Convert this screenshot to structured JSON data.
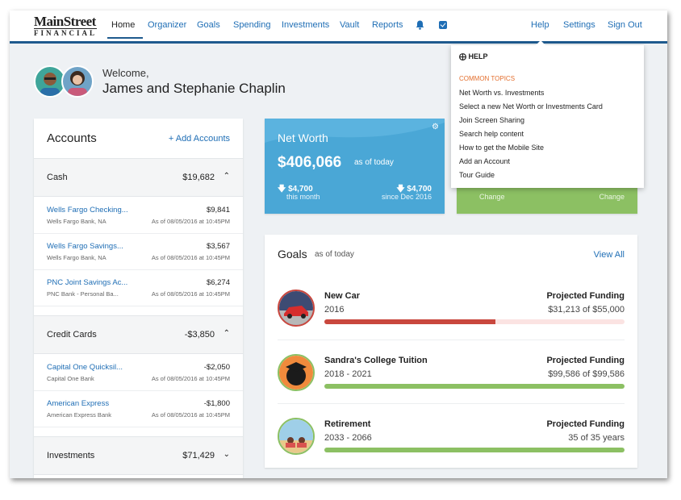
{
  "logo": {
    "line1": "MainStreet",
    "line2": "FINANCIAL"
  },
  "nav": {
    "items": [
      "Home",
      "Organizer",
      "Goals",
      "Spending",
      "Investments",
      "Vault",
      "Reports"
    ],
    "active": "Home",
    "right": [
      "Help",
      "Settings",
      "Sign Out"
    ]
  },
  "welcome": {
    "greeting": "Welcome,",
    "name": "James and Stephanie Chaplin"
  },
  "accounts": {
    "title": "Accounts",
    "add_label": "+ Add Accounts",
    "groups": [
      {
        "name": "Cash",
        "value": "$19,682",
        "chevron": "up"
      },
      {
        "name": "Credit Cards",
        "value": "-$3,850",
        "chevron": "up"
      },
      {
        "name": "Investments",
        "value": "$71,429",
        "chevron": "down"
      }
    ],
    "rows": [
      {
        "name": "Wells Fargo Checking...",
        "bank": "Wells Fargo Bank, NA",
        "value": "$9,841",
        "date": "As of 08/05/2016 at 10:45PM"
      },
      {
        "name": "Wells Fargo Savings...",
        "bank": "Wells Fargo Bank, NA",
        "value": "$3,567",
        "date": "As of 08/05/2016 at 10:45PM"
      },
      {
        "name": "PNC Joint Savings Ac...",
        "bank": "PNC Bank - Personal Ba...",
        "value": "$6,274",
        "date": "As of 08/05/2016 at 10:45PM"
      },
      {
        "name": "Capital One Quicksil...",
        "bank": "Capital One Bank",
        "value": "-$2,050",
        "date": "As of 08/05/2016 at 10:45PM"
      },
      {
        "name": "American Express",
        "bank": "American Express Bank",
        "value": "-$1,800",
        "date": "As of 08/05/2016 at 10:45PM"
      }
    ]
  },
  "networth": {
    "title": "Net Worth",
    "value": "$406,066",
    "asof": "as of today",
    "change1": "$4,700",
    "change1_label": "this month",
    "change2": "$4,700",
    "change2_label": "since Dec 2016"
  },
  "investments_card": {
    "change_label_left": "Change",
    "change_label_right": "Change"
  },
  "goals": {
    "title": "Goals",
    "asof": "as of today",
    "view_all": "View All",
    "items": [
      {
        "name": "New Car",
        "years": "2016",
        "proj_label": "Projected Funding",
        "proj_value": "$31,213 of $55,000",
        "progress": 0.57,
        "color": "#c9473e",
        "track": "#fbe3e2"
      },
      {
        "name": "Sandra's College Tuition",
        "years": "2018 - 2021",
        "proj_label": "Projected Funding",
        "proj_value": "$99,586 of $99,586",
        "progress": 1.0,
        "color": "#8cc063",
        "track": "#e7f2de"
      },
      {
        "name": "Retirement",
        "years": "2033 - 2066",
        "proj_label": "Projected Funding",
        "proj_value": "35 of 35 years",
        "progress": 1.0,
        "color": "#8cc063",
        "track": "#e7f2de"
      }
    ]
  },
  "help": {
    "header": "HELP",
    "section": "COMMON TOPICS",
    "items": [
      "Net Worth vs. Investments",
      "Select a new Net Worth or Investments Card",
      "Join Screen Sharing",
      "Search help content",
      "How to get the Mobile Site",
      "Add an Account",
      "Tour Guide"
    ]
  },
  "colors": {
    "brand": "#1e5a8e",
    "link": "#1f6eb5",
    "networth": "#4aa7d6",
    "investments": "#8cc063",
    "topics": "#e36e2d"
  },
  "icons": [
    "bell-icon",
    "checklist-icon",
    "gear-icon",
    "help-lifebuoy-icon",
    "arrow-down-icon",
    "chevron-up-icon",
    "chevron-down-icon",
    "plus-icon"
  ]
}
